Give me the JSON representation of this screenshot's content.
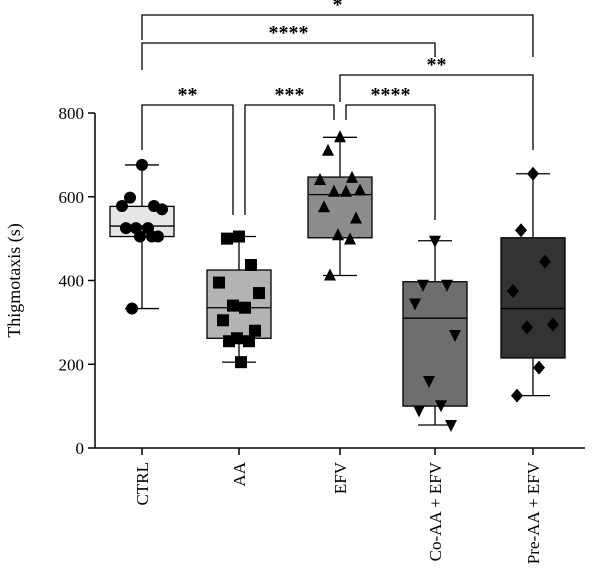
{
  "chart_data": {
    "type": "box",
    "title": "",
    "ylabel": "Thigmotaxis (s)",
    "xlabel": "",
    "ylim": [
      0,
      800
    ],
    "yticks": [
      0,
      200,
      400,
      600,
      800
    ],
    "grid": false,
    "legend": "none",
    "categories": [
      "CTRL",
      "AA",
      "EFV",
      "Co-AA + EFV",
      "Pre-AA + EFV"
    ],
    "groups": [
      {
        "category": "CTRL",
        "marker": "circle",
        "color": "#e6e6e6",
        "min": 333,
        "q1": 505,
        "median": 530,
        "q3": 577,
        "max": 676,
        "points": [
          676,
          598,
          578,
          578,
          570,
          525,
          525,
          525,
          505,
          505,
          505,
          333
        ]
      },
      {
        "category": "AA",
        "marker": "square",
        "color": "#b3b3b3",
        "min": 205,
        "q1": 262,
        "median": 335,
        "q3": 425,
        "max": 505,
        "points": [
          505,
          500,
          437,
          395,
          370,
          340,
          335,
          305,
          280,
          262,
          255,
          255,
          205
        ]
      },
      {
        "category": "EFV",
        "marker": "triangle-up",
        "color": "#8c8c8c",
        "min": 412,
        "q1": 502,
        "median": 605,
        "q3": 647,
        "max": 742,
        "points": [
          742,
          710,
          645,
          640,
          615,
          612,
          612,
          575,
          548,
          508,
          498,
          412
        ]
      },
      {
        "category": "Co-AA + EFV",
        "marker": "triangle-down",
        "color": "#6e6e6e",
        "min": 55,
        "q1": 100,
        "median": 310,
        "q3": 397,
        "max": 495,
        "points": [
          495,
          390,
          390,
          345,
          270,
          160,
          102,
          90,
          55
        ]
      },
      {
        "category": "Pre-AA + EFV",
        "marker": "diamond",
        "color": "#333333",
        "min": 125,
        "q1": 215,
        "median": 333,
        "q3": 502,
        "max": 655,
        "points": [
          655,
          520,
          445,
          375,
          295,
          288,
          192,
          125
        ]
      }
    ],
    "significance": [
      {
        "from": "CTRL",
        "to": "Pre-AA + EFV",
        "label": "*"
      },
      {
        "from": "CTRL",
        "to": "Co-AA + EFV",
        "label": "****"
      },
      {
        "from": "EFV",
        "to": "Pre-AA + EFV",
        "label": "**"
      },
      {
        "from": "CTRL",
        "to": "AA",
        "label": "**"
      },
      {
        "from": "AA",
        "to": "EFV",
        "label": "***"
      },
      {
        "from": "EFV",
        "to": "Co-AA + EFV",
        "label": "****"
      }
    ]
  }
}
